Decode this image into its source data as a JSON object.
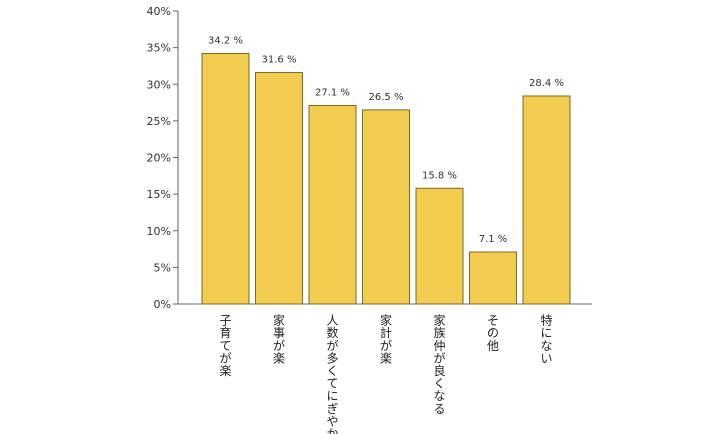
{
  "chart_data": {
    "type": "bar",
    "categories": [
      "子育てが楽",
      "家事が楽",
      "人数が多くてにぎやか",
      "家計が楽",
      "家族仲が良くなる",
      "その他",
      "特にない"
    ],
    "values": [
      34.2,
      31.6,
      27.1,
      26.5,
      15.8,
      7.1,
      28.4
    ],
    "data_labels": [
      "34.2 %",
      "31.6 %",
      "27.1 %",
      "26.5 %",
      "15.8 %",
      "7.1 %",
      "28.4 %"
    ],
    "y_ticks": [
      "0%",
      "5%",
      "10%",
      "15%",
      "20%",
      "25%",
      "30%",
      "35%",
      "40%"
    ],
    "ylim": [
      0,
      40
    ],
    "title": "",
    "xlabel": "",
    "ylabel": "",
    "grid": false,
    "bar_color": "#f2cc4e",
    "bar_edge_color": "#7a6a2a",
    "axis_color": "#666666"
  }
}
